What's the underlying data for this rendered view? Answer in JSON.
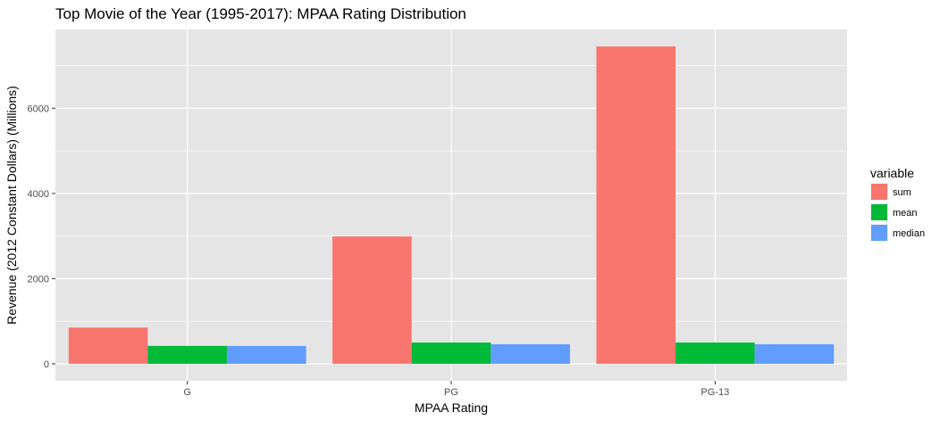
{
  "chart_data": {
    "type": "bar",
    "title": "Top Movie of the Year (1995-2017): MPAA Rating Distribution",
    "xlabel": "MPAA Rating",
    "ylabel": "Revenue (2012 Constant Dollars) (Millions)",
    "categories": [
      "G",
      "PG",
      "PG-13"
    ],
    "series": [
      {
        "name": "sum",
        "values": [
          850,
          2990,
          7450
        ],
        "color": "#F8766D"
      },
      {
        "name": "mean",
        "values": [
          420,
          500,
          500
        ],
        "color": "#00BA38"
      },
      {
        "name": "median",
        "values": [
          420,
          460,
          460
        ],
        "color": "#619CFF"
      }
    ],
    "ylim": [
      -400,
      7850
    ],
    "yticks": [
      0,
      2000,
      4000,
      6000
    ],
    "grid": true,
    "legend": {
      "title": "variable",
      "position": "right"
    },
    "panel_background": "#E5E5E5",
    "grid_color": "#FFFFFF"
  }
}
